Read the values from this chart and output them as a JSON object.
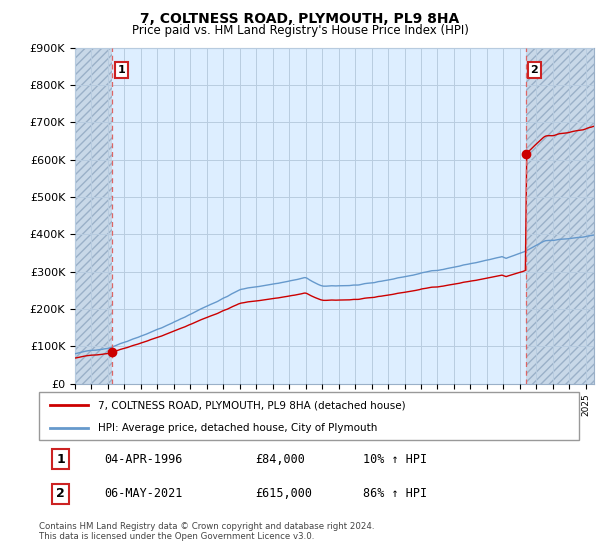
{
  "title": "7, COLTNESS ROAD, PLYMOUTH, PL9 8HA",
  "subtitle": "Price paid vs. HM Land Registry's House Price Index (HPI)",
  "ylabel_ticks": [
    "£0",
    "£100K",
    "£200K",
    "£300K",
    "£400K",
    "£500K",
    "£600K",
    "£700K",
    "£800K",
    "£900K"
  ],
  "ytick_values": [
    0,
    100000,
    200000,
    300000,
    400000,
    500000,
    600000,
    700000,
    800000,
    900000
  ],
  "ylim": [
    0,
    900000
  ],
  "xlim_start": 1994.0,
  "xlim_end": 2025.5,
  "sale1_x": 1996.27,
  "sale1_y": 84000,
  "sale2_x": 2021.35,
  "sale2_y": 615000,
  "hpi_color": "#6699cc",
  "sale_color": "#cc0000",
  "dashed_color": "#dd6666",
  "bg_color": "#ddeeff",
  "hatch_color": "#b8cce0",
  "grid_color": "#b8cce0",
  "legend_label1": "7, COLTNESS ROAD, PLYMOUTH, PL9 8HA (detached house)",
  "legend_label2": "HPI: Average price, detached house, City of Plymouth",
  "table_row1": [
    "1",
    "04-APR-1996",
    "£84,000",
    "10% ↑ HPI"
  ],
  "table_row2": [
    "2",
    "06-MAY-2021",
    "£615,000",
    "86% ↑ HPI"
  ],
  "footnote": "Contains HM Land Registry data © Crown copyright and database right 2024.\nThis data is licensed under the Open Government Licence v3.0."
}
